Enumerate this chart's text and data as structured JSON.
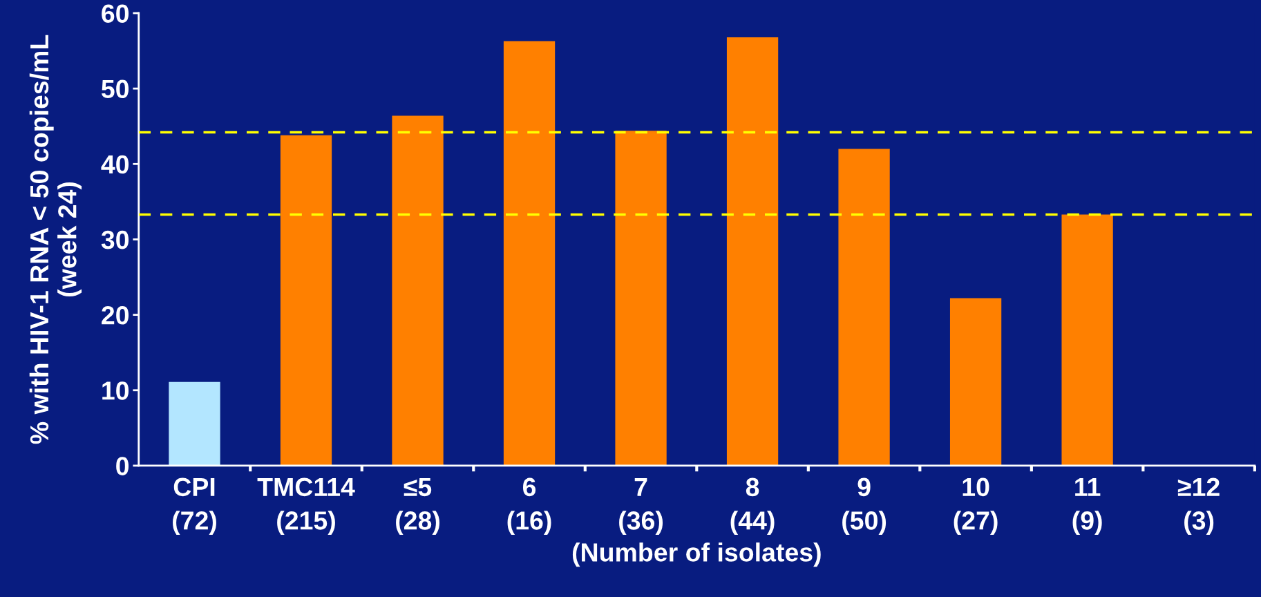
{
  "chart_data": {
    "type": "bar",
    "xlabel": "(Number of isolates)",
    "ylabel": "% with HIV-1 RNA < 50 copies/mL\n(week 24)",
    "categories": [
      "CPI\n(72)",
      "TMC114\n(215)",
      "≤5\n(28)",
      "6\n(16)",
      "7\n(36)",
      "8\n(44)",
      "9\n(50)",
      "10\n(27)",
      "11\n(9)",
      "≥12\n(3)"
    ],
    "values": [
      11.1,
      43.8,
      46.4,
      56.3,
      44.4,
      56.8,
      42.0,
      22.2,
      33.3,
      0
    ],
    "colors": [
      "#b3e6ff",
      "#ff8000",
      "#ff8000",
      "#ff8000",
      "#ff8000",
      "#ff8000",
      "#ff8000",
      "#ff8000",
      "#ff8000",
      "#ff8000"
    ],
    "ylim": [
      0,
      60
    ],
    "yticks": [
      0,
      10,
      20,
      30,
      40,
      50,
      60
    ],
    "ref_lines": [
      {
        "axis": "y",
        "value": 44.2,
        "color": "#ffff00",
        "line_style": "dashed"
      },
      {
        "axis": "y",
        "value": 33.3,
        "color": "#ffff00",
        "line_style": "dashed"
      }
    ],
    "grid": false,
    "legend": false
  }
}
